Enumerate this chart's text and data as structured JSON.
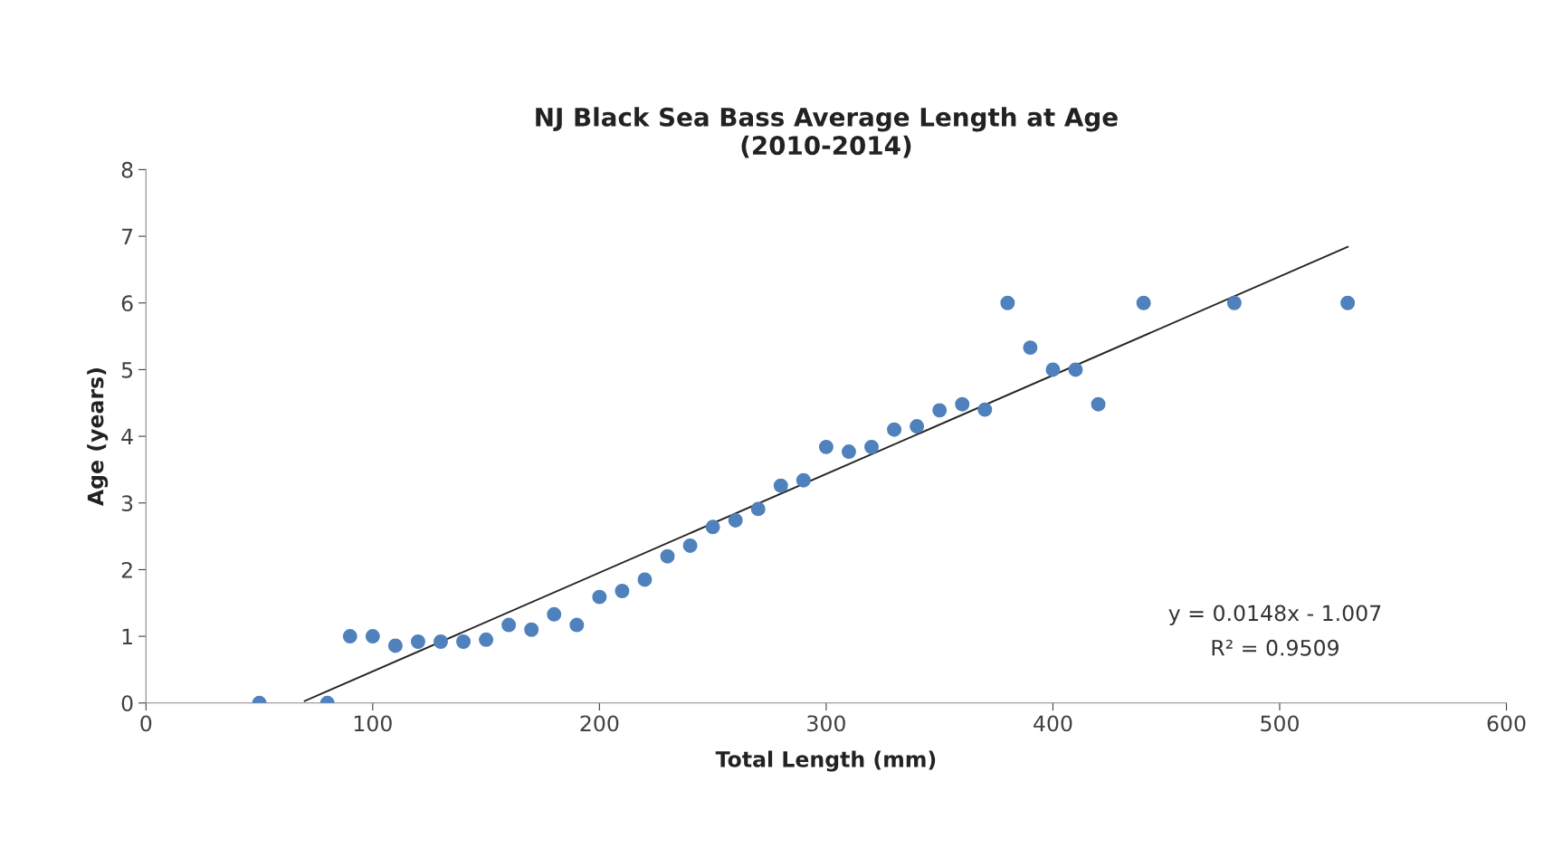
{
  "chart_data": {
    "type": "scatter",
    "title": "NJ Black Sea Bass Average Length at Age\n(2010-2014)",
    "xlabel": "Total Length (mm)",
    "ylabel": "Age (years)",
    "xlim": [
      0,
      600
    ],
    "xticks": [
      0,
      100,
      200,
      300,
      400,
      500,
      600
    ],
    "ylim": [
      0,
      8
    ],
    "yticks": [
      0,
      1,
      2,
      3,
      4,
      5,
      6,
      7,
      8
    ],
    "grid": false,
    "legend": false,
    "series": [
      {
        "marker": "circle",
        "color": "#4f81bd",
        "x": [
          50,
          80,
          90,
          100,
          110,
          120,
          130,
          140,
          150,
          160,
          170,
          180,
          190,
          200,
          210,
          220,
          230,
          240,
          250,
          260,
          270,
          280,
          290,
          300,
          310,
          320,
          330,
          340,
          350,
          360,
          370,
          380,
          390,
          400,
          410,
          420,
          440,
          480,
          530
        ],
        "values": [
          0,
          0,
          1.0,
          1.0,
          0.86,
          0.92,
          0.92,
          0.92,
          0.95,
          1.17,
          1.1,
          1.33,
          1.17,
          1.59,
          1.68,
          1.85,
          2.2,
          2.36,
          2.64,
          2.74,
          2.91,
          3.26,
          3.34,
          3.84,
          3.77,
          3.84,
          4.1,
          4.15,
          4.39,
          4.48,
          4.4,
          6.0,
          5.33,
          5.0,
          5.0,
          4.48,
          6.0,
          6.0,
          6.0
        ]
      },
      {
        "type": "line",
        "marker": "none",
        "color": "#262626",
        "x": [
          70,
          530
        ],
        "values": [
          0.03,
          6.84
        ]
      }
    ],
    "annotations": [
      "y = 0.0148x - 1.007",
      "R² = 0.9509"
    ]
  }
}
